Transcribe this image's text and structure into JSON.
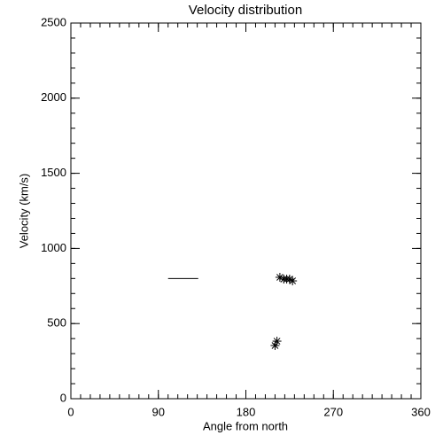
{
  "chart_data": {
    "type": "scatter",
    "title": "Velocity distribution",
    "x_label": "Angle from north",
    "y_label": "Velocity (km/s)",
    "points": {
      "x": [
        215,
        219,
        222,
        225,
        228,
        210,
        212
      ],
      "y": [
        808,
        796,
        796,
        796,
        784,
        354,
        383
      ]
    },
    "segment": {
      "x": [
        100,
        131
      ],
      "y": [
        800,
        800
      ]
    },
    "color": "#000000",
    "xlim": [
      0,
      360
    ],
    "xticks": [
      0,
      90,
      180,
      270,
      360
    ],
    "x_minor_step": 10,
    "ylim": [
      0,
      2500
    ],
    "yticks": [
      0,
      500,
      1000,
      1500,
      2000,
      2500
    ],
    "y_minor_step": 100
  }
}
